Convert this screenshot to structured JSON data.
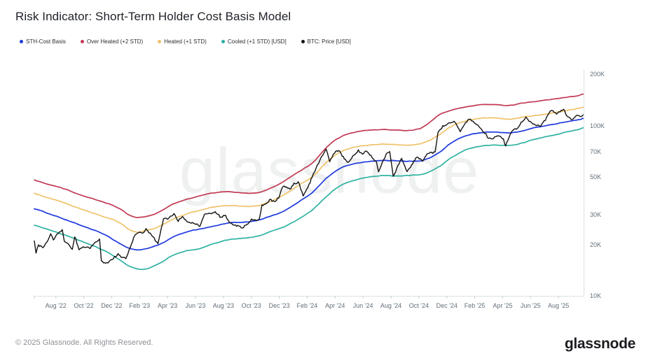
{
  "title": "Risk Indicator: Short-Term Holder Cost Basis Model",
  "watermark": "glassnode",
  "footer": {
    "copyright": "© 2025 Glassnode. All Rights Reserved.",
    "brand": "glassnode"
  },
  "chart_data": {
    "type": "line",
    "title": "Risk Indicator: Short-Term Holder Cost Basis Model",
    "y_scale": "log",
    "y_axis_side": "right",
    "grid": false,
    "legend_position": "top-left",
    "values_unit": "thousand USD",
    "ylim_usd_k": [
      10,
      200
    ],
    "y_ticks": [
      {
        "label": "200K",
        "value": 200
      },
      {
        "label": "100K",
        "value": 100
      },
      {
        "label": "70K",
        "value": 70
      },
      {
        "label": "50K",
        "value": 50
      },
      {
        "label": "30K",
        "value": 30
      },
      {
        "label": "20K",
        "value": 20
      },
      {
        "label": "10K",
        "value": 10
      }
    ],
    "x_unit": "months since chart start (mid-June 2022)",
    "x_tick_first_month": 1.54,
    "x_tick_step_months": 2,
    "x_tick_labels": [
      "Aug '22",
      "Oct '22",
      "Dec '22",
      "Feb '23",
      "Apr '23",
      "Jun '23",
      "Aug '23",
      "Oct '23",
      "Dec '23",
      "Feb '24",
      "Apr '24",
      "Jun '24",
      "Aug '24",
      "Oct '24",
      "Dec '24",
      "Feb '25",
      "Apr '25",
      "Jun '25",
      "Aug '25"
    ],
    "band_x_months": [
      0,
      1,
      2,
      3,
      4,
      5,
      6,
      7,
      8,
      9,
      10,
      11,
      12,
      13,
      14,
      15,
      16,
      17,
      18,
      19,
      20,
      21,
      22,
      23,
      24,
      25,
      26,
      27,
      28,
      29,
      30,
      31,
      32,
      33,
      34,
      35,
      36,
      37,
      38,
      39,
      39.3
    ],
    "series": [
      {
        "name": "STH-Cost Basis",
        "color": "#1d39dd",
        "kind": "band",
        "values": [
          32.5,
          30.5,
          28.5,
          26.5,
          24.8,
          23.0,
          20.5,
          18.5,
          18.8,
          20.0,
          22.3,
          24.0,
          24.8,
          25.8,
          27.0,
          27.0,
          27.6,
          29.5,
          31.5,
          36.0,
          40.5,
          50.0,
          57.0,
          60.0,
          61.5,
          62.5,
          62.0,
          61.5,
          62.5,
          69.0,
          81.0,
          88.0,
          91.0,
          92.0,
          90.0,
          93.0,
          98.0,
          101.0,
          105.0,
          108.0,
          110.0
        ]
      },
      {
        "name": "Over Heated (+2 STD)",
        "color": "#c23a54",
        "kind": "band",
        "values": [
          48,
          45,
          43,
          40,
          37.5,
          35.5,
          33,
          28.8,
          29,
          31,
          35,
          37,
          39,
          40.5,
          41,
          40,
          40,
          43,
          47.5,
          54,
          60,
          76,
          87,
          92,
          94,
          95,
          94,
          93,
          98,
          117,
          124,
          129,
          133,
          133,
          130,
          136,
          139,
          142,
          146,
          150,
          153
        ]
      },
      {
        "name": "Heated (+1 STD)",
        "color": "#efc26a",
        "kind": "band",
        "values": [
          40,
          37.5,
          35.5,
          33,
          31,
          29,
          27.5,
          23.5,
          24,
          25.5,
          28.5,
          30.5,
          32,
          33.5,
          34,
          33.5,
          33.5,
          36,
          39.5,
          45,
          50,
          62,
          71,
          75,
          77,
          78,
          77,
          76.5,
          79,
          88,
          101,
          107,
          111,
          111,
          108,
          112,
          115,
          118,
          122,
          126,
          128
        ]
      },
      {
        "name": "Cooled (+1 STD) [USD]",
        "color": "#2eb2a2",
        "kind": "band",
        "values": [
          26,
          24.5,
          23,
          21.5,
          20,
          18.5,
          16.5,
          14.5,
          14.2,
          15.5,
          17.5,
          18.5,
          19,
          20.5,
          21.5,
          21.8,
          22.3,
          24,
          25.5,
          28.5,
          32,
          39,
          45,
          48,
          50,
          51,
          50.5,
          51,
          52,
          57,
          66,
          73,
          76,
          77,
          76,
          79,
          84,
          87,
          91,
          95,
          97
        ]
      },
      {
        "name": "BTC: Price [USD]",
        "color": "#131313",
        "kind": "price",
        "points": [
          [
            0,
            21.0
          ],
          [
            0.12,
            17.9
          ],
          [
            0.3,
            19.8
          ],
          [
            0.6,
            19.3
          ],
          [
            0.9,
            20.5
          ],
          [
            1.17,
            23.3
          ],
          [
            1.37,
            21.3
          ],
          [
            1.8,
            23.9
          ],
          [
            2.0,
            24.3
          ],
          [
            2.15,
            20.9
          ],
          [
            2.5,
            19.9
          ],
          [
            2.72,
            18.8
          ],
          [
            2.9,
            22.3
          ],
          [
            3.2,
            18.6
          ],
          [
            3.5,
            19.4
          ],
          [
            4.0,
            19.1
          ],
          [
            4.3,
            20.4
          ],
          [
            4.67,
            21.3
          ],
          [
            4.8,
            15.9
          ],
          [
            5.2,
            15.6
          ],
          [
            5.5,
            16.3
          ],
          [
            6.0,
            17.5
          ],
          [
            6.3,
            16.8
          ],
          [
            6.55,
            16.6
          ],
          [
            6.95,
            19.9
          ],
          [
            7.2,
            22.7
          ],
          [
            7.45,
            23.7
          ],
          [
            7.75,
            23.1
          ],
          [
            8.0,
            24.6
          ],
          [
            8.3,
            23.2
          ],
          [
            8.85,
            20.3
          ],
          [
            9.25,
            28.1
          ],
          [
            9.6,
            28.5
          ],
          [
            10.0,
            30.4
          ],
          [
            10.3,
            27.6
          ],
          [
            10.6,
            29.0
          ],
          [
            11.0,
            27.0
          ],
          [
            11.4,
            26.9
          ],
          [
            11.85,
            25.8
          ],
          [
            12.25,
            30.5
          ],
          [
            12.6,
            30.3
          ],
          [
            12.95,
            31.3
          ],
          [
            13.3,
            29.2
          ],
          [
            13.7,
            29.4
          ],
          [
            14.05,
            26.6
          ],
          [
            14.4,
            26.0
          ],
          [
            14.9,
            25.2
          ],
          [
            15.3,
            26.6
          ],
          [
            15.55,
            28.0
          ],
          [
            16.1,
            27.9
          ],
          [
            16.3,
            33.9
          ],
          [
            16.6,
            34.5
          ],
          [
            16.85,
            36.7
          ],
          [
            17.2,
            35.8
          ],
          [
            17.5,
            37.8
          ],
          [
            17.8,
            44.2
          ],
          [
            18.3,
            42.3
          ],
          [
            18.6,
            45.5
          ],
          [
            18.9,
            46.6
          ],
          [
            19.25,
            38.9
          ],
          [
            19.6,
            43.1
          ],
          [
            19.9,
            49.9
          ],
          [
            20.45,
            62.5
          ],
          [
            20.9,
            73.1
          ],
          [
            21.15,
            61.9
          ],
          [
            21.5,
            69.5
          ],
          [
            21.8,
            71.6
          ],
          [
            22.2,
            63.5
          ],
          [
            22.5,
            60.6
          ],
          [
            22.9,
            67.5
          ],
          [
            23.2,
            71.4
          ],
          [
            23.5,
            68.5
          ],
          [
            23.75,
            71.1
          ],
          [
            24.2,
            64.9
          ],
          [
            24.5,
            61.0
          ],
          [
            24.65,
            53.9
          ],
          [
            25.2,
            67.8
          ],
          [
            25.45,
            69.9
          ],
          [
            25.7,
            49.8
          ],
          [
            26.3,
            64.1
          ],
          [
            26.7,
            53.3
          ],
          [
            27.1,
            60.1
          ],
          [
            27.4,
            65.8
          ],
          [
            27.8,
            62.1
          ],
          [
            28.2,
            69.0
          ],
          [
            28.7,
            69.4
          ],
          [
            28.9,
            89.9
          ],
          [
            29.25,
            99.0
          ],
          [
            29.7,
            103.0
          ],
          [
            30.05,
            106.1
          ],
          [
            30.5,
            92.6
          ],
          [
            30.8,
            102.3
          ],
          [
            31.15,
            109.1
          ],
          [
            31.5,
            104.7
          ],
          [
            31.9,
            96.5
          ],
          [
            32.35,
            88.6
          ],
          [
            32.45,
            84.3
          ],
          [
            32.8,
            83.9
          ],
          [
            33.3,
            87.5
          ],
          [
            33.6,
            82.5
          ],
          [
            33.75,
            76.3
          ],
          [
            34.25,
            93.7
          ],
          [
            34.6,
            97.0
          ],
          [
            35.2,
            111.7
          ],
          [
            35.5,
            105.5
          ],
          [
            35.7,
            101.6
          ],
          [
            36.25,
            99.0
          ],
          [
            36.6,
            108.0
          ],
          [
            36.95,
            123.1
          ],
          [
            37.4,
            117.5
          ],
          [
            37.9,
            124.3
          ],
          [
            38.2,
            112.5
          ],
          [
            38.45,
            108.4
          ],
          [
            38.9,
            116.1
          ],
          [
            39.1,
            112.0
          ],
          [
            39.3,
            115.5
          ]
        ]
      }
    ],
    "colors": {
      "axis_line": "#d8e4e2",
      "tick_mark": "#c9ced4",
      "tick_text": "#626e79"
    }
  }
}
